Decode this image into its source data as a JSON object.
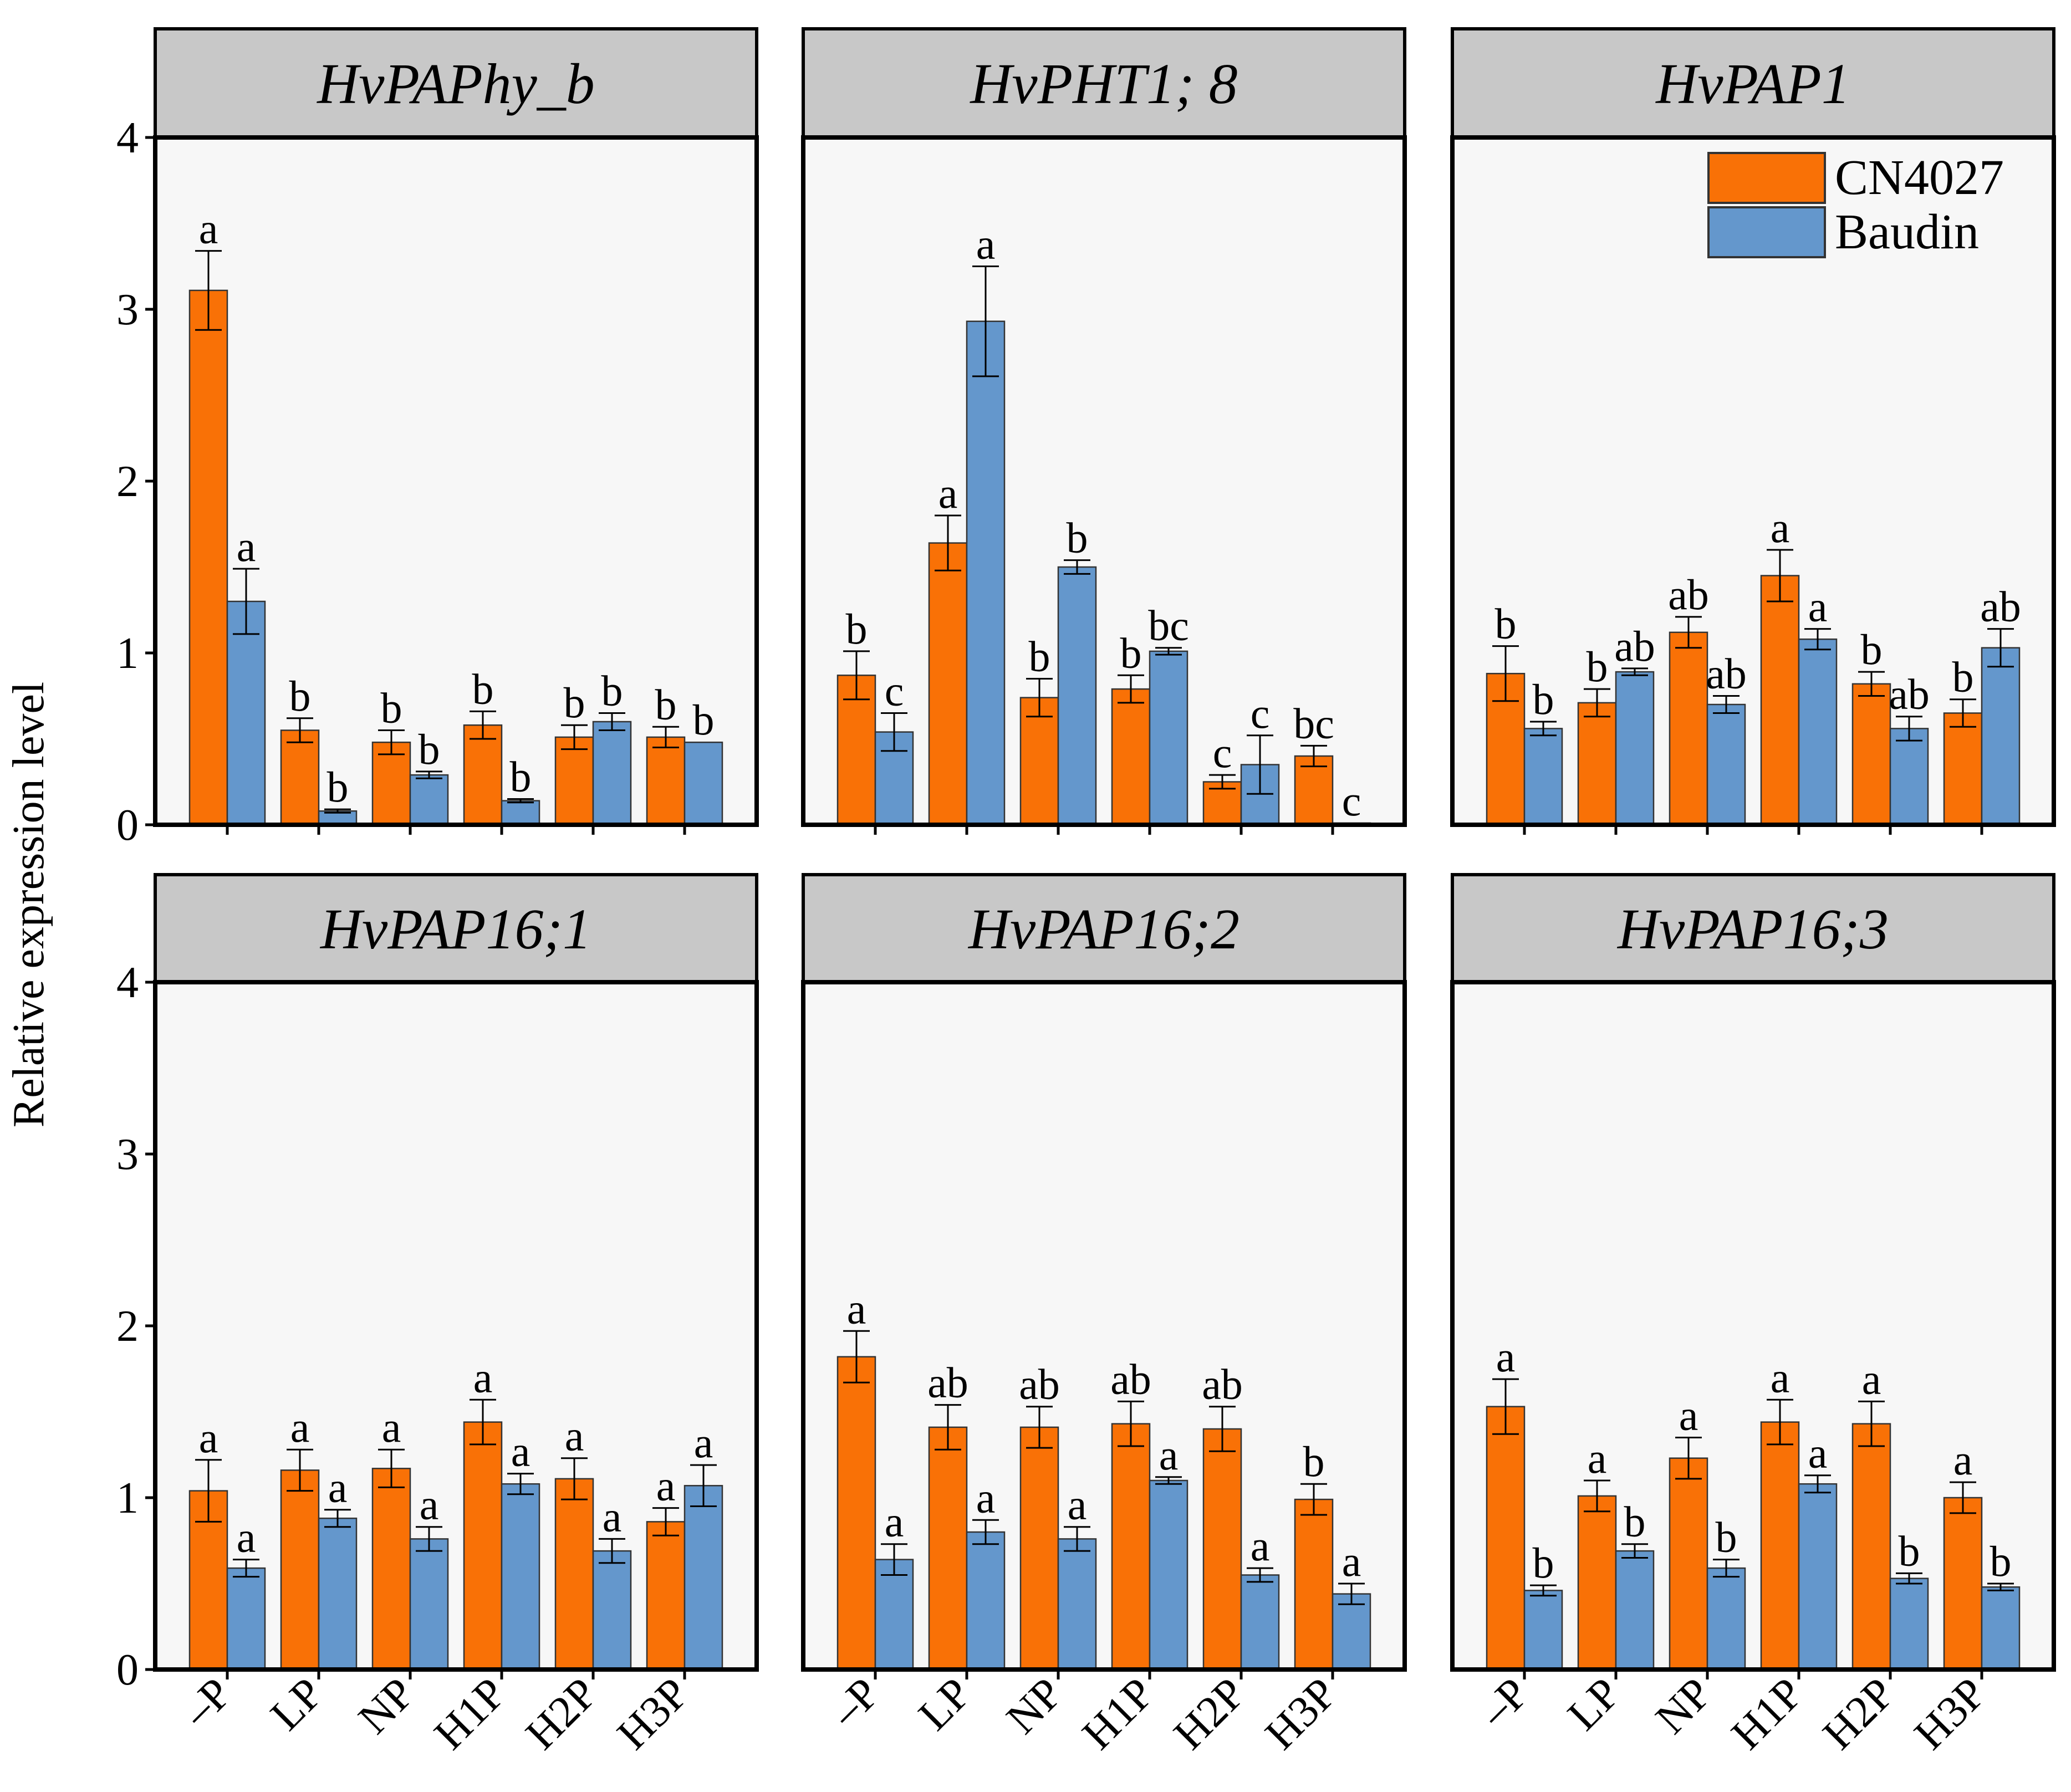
{
  "colors": {
    "series": [
      "#f97106",
      "#6497cc"
    ],
    "panel_bg": "#f7f7f7",
    "strip_bg": "#c8c8c8",
    "frame": "#000000"
  },
  "chart_data": {
    "type": "bar",
    "ylabel": "Relative expression level",
    "ylim": [
      0,
      4
    ],
    "yticks": [
      "0",
      "1",
      "2",
      "3",
      "4"
    ],
    "categories": [
      "–P",
      "LP",
      "NP",
      "H1P",
      "H2P",
      "H3P"
    ],
    "series_names": [
      "CN4027",
      "Baudin"
    ],
    "legend": {
      "position": "top-right",
      "panel": 2
    },
    "panels": [
      {
        "title": "HvPAPhy_b",
        "series": [
          {
            "name": "CN4027",
            "values": [
              3.11,
              0.55,
              0.48,
              0.58,
              0.51,
              0.51
            ],
            "errors": [
              0.23,
              0.07,
              0.07,
              0.08,
              0.07,
              0.06
            ],
            "letters": [
              "a",
              "b",
              "b",
              "b",
              "b",
              "b"
            ]
          },
          {
            "name": "Baudin",
            "values": [
              1.3,
              0.08,
              0.29,
              0.14,
              0.6,
              0.48
            ],
            "errors": [
              0.19,
              0.01,
              0.02,
              0.01,
              0.05,
              0.0
            ],
            "letters": [
              "a",
              "b",
              "b",
              "b",
              "b",
              "b"
            ]
          }
        ]
      },
      {
        "title": "HvPHT1; 8",
        "series": [
          {
            "name": "CN4027",
            "values": [
              0.87,
              1.64,
              0.74,
              0.79,
              0.25,
              0.4
            ],
            "errors": [
              0.14,
              0.16,
              0.11,
              0.08,
              0.04,
              0.06
            ],
            "letters": [
              "b",
              "a",
              "b",
              "b",
              "c",
              "bc"
            ]
          },
          {
            "name": "Baudin",
            "values": [
              0.54,
              2.93,
              1.5,
              1.01,
              0.35,
              0.01
            ],
            "errors": [
              0.11,
              0.32,
              0.04,
              0.02,
              0.17,
              0.0
            ],
            "letters": [
              "c",
              "a",
              "b",
              "bc",
              "c",
              "c"
            ]
          }
        ]
      },
      {
        "title": "HvPAP1",
        "series": [
          {
            "name": "CN4027",
            "values": [
              0.88,
              0.71,
              1.12,
              1.45,
              0.82,
              0.65
            ],
            "errors": [
              0.16,
              0.08,
              0.09,
              0.15,
              0.07,
              0.08
            ],
            "letters": [
              "b",
              "b",
              "ab",
              "a",
              "b",
              "b"
            ]
          },
          {
            "name": "Baudin",
            "values": [
              0.56,
              0.89,
              0.7,
              1.08,
              0.56,
              1.03
            ],
            "errors": [
              0.04,
              0.02,
              0.05,
              0.06,
              0.07,
              0.11
            ],
            "letters": [
              "b",
              "ab",
              "ab",
              "a",
              "ab",
              "ab"
            ]
          }
        ]
      },
      {
        "title": "HvPAP16;1",
        "series": [
          {
            "name": "CN4027",
            "values": [
              1.04,
              1.16,
              1.17,
              1.44,
              1.11,
              0.86
            ],
            "errors": [
              0.18,
              0.12,
              0.11,
              0.13,
              0.12,
              0.08
            ],
            "letters": [
              "a",
              "a",
              "a",
              "a",
              "a",
              "a"
            ]
          },
          {
            "name": "Baudin",
            "values": [
              0.59,
              0.88,
              0.76,
              1.08,
              0.69,
              1.07
            ],
            "errors": [
              0.05,
              0.05,
              0.07,
              0.06,
              0.07,
              0.12
            ],
            "letters": [
              "a",
              "a",
              "a",
              "a",
              "a",
              "a"
            ]
          }
        ]
      },
      {
        "title": "HvPAP16;2",
        "series": [
          {
            "name": "CN4027",
            "values": [
              1.82,
              1.41,
              1.41,
              1.43,
              1.4,
              0.99
            ],
            "errors": [
              0.15,
              0.13,
              0.12,
              0.13,
              0.13,
              0.09
            ],
            "letters": [
              "a",
              "ab",
              "ab",
              "ab",
              "ab",
              "b"
            ]
          },
          {
            "name": "Baudin",
            "values": [
              0.64,
              0.8,
              0.76,
              1.1,
              0.55,
              0.44
            ],
            "errors": [
              0.09,
              0.07,
              0.07,
              0.02,
              0.04,
              0.06
            ],
            "letters": [
              "a",
              "a",
              "a",
              "a",
              "a",
              "a"
            ]
          }
        ]
      },
      {
        "title": "HvPAP16;3",
        "series": [
          {
            "name": "CN4027",
            "values": [
              1.53,
              1.01,
              1.23,
              1.44,
              1.43,
              1.0
            ],
            "errors": [
              0.16,
              0.09,
              0.12,
              0.13,
              0.13,
              0.09
            ],
            "letters": [
              "a",
              "a",
              "a",
              "a",
              "a",
              "a"
            ]
          },
          {
            "name": "Baudin",
            "values": [
              0.46,
              0.69,
              0.59,
              1.08,
              0.53,
              0.48
            ],
            "errors": [
              0.03,
              0.04,
              0.05,
              0.05,
              0.03,
              0.02
            ],
            "letters": [
              "b",
              "b",
              "b",
              "a",
              "b",
              "b"
            ]
          }
        ]
      }
    ]
  }
}
